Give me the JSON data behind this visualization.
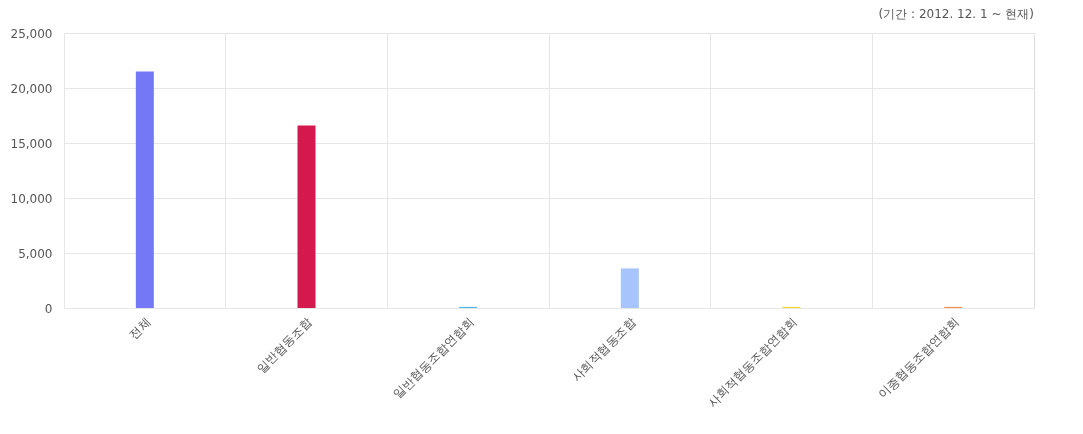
{
  "chart_data": {
    "type": "bar",
    "annotations": [
      "(기간 : 2012. 12. 1 ~ 현재)"
    ],
    "categories": [
      "전체",
      "일반협동조합",
      "일반협동조합연합회",
      "사회적협동조합",
      "사회적협동조합연합회",
      "이종협동조합연합회"
    ],
    "values": [
      21500,
      16600,
      100,
      3600,
      100,
      100
    ],
    "colors": [
      "#7578f6",
      "#d4194f",
      "#4db8e8",
      "#a8c4fc",
      "#f5d328",
      "#f58c4c"
    ],
    "ylim": [
      0,
      25000
    ],
    "yticks": [
      0,
      {
        "value": 5000,
        "label": "5,000"
      },
      {
        "value": 10000,
        "label": "10,000"
      },
      {
        "value": 15000,
        "label": "15,000"
      },
      {
        "value": 20000,
        "label": "20,000"
      },
      {
        "value": 25000,
        "label": "25,000"
      }
    ],
    "grid": true,
    "legend": false
  }
}
